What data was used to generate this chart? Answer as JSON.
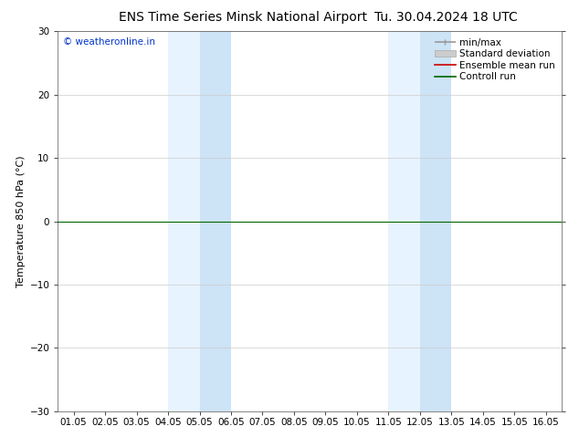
{
  "title_left": "ENS Time Series Minsk National Airport",
  "title_right": "Tu. 30.04.2024 18 UTC",
  "ylabel": "Temperature 850 hPa (°C)",
  "ylim": [
    -30,
    30
  ],
  "yticks": [
    -30,
    -20,
    -10,
    0,
    10,
    20,
    30
  ],
  "xlim": [
    0,
    15
  ],
  "xtick_labels": [
    "01.05",
    "02.05",
    "03.05",
    "04.05",
    "05.05",
    "06.05",
    "07.05",
    "08.05",
    "09.05",
    "10.05",
    "11.05",
    "12.05",
    "13.05",
    "14.05",
    "15.05",
    "16.05"
  ],
  "xtick_positions": [
    0,
    1,
    2,
    3,
    4,
    5,
    6,
    7,
    8,
    9,
    10,
    11,
    12,
    13,
    14,
    15
  ],
  "watermark": "© weatheronline.in",
  "watermark_color": "#0033cc",
  "background_color": "#ffffff",
  "plot_bg_color": "#ffffff",
  "shaded_regions": [
    {
      "x_start": 3.0,
      "x_end": 4.0,
      "color": "#ddeeff",
      "alpha": 0.7
    },
    {
      "x_start": 4.0,
      "x_end": 5.0,
      "color": "#c5dff5",
      "alpha": 0.85
    },
    {
      "x_start": 10.0,
      "x_end": 11.0,
      "color": "#ddeeff",
      "alpha": 0.7
    },
    {
      "x_start": 11.0,
      "x_end": 12.0,
      "color": "#c5dff5",
      "alpha": 0.85
    }
  ],
  "zero_line_y": 0,
  "control_run_color": "#006600",
  "ensemble_mean_color": "#cc0000",
  "legend_items": [
    {
      "label": "min/max",
      "color": "#999999"
    },
    {
      "label": "Standard deviation",
      "color": "#bbbbbb"
    },
    {
      "label": "Ensemble mean run",
      "color": "#cc0000"
    },
    {
      "label": "Controll run",
      "color": "#006600"
    }
  ],
  "title_fontsize": 10,
  "axis_fontsize": 8,
  "tick_fontsize": 7.5,
  "watermark_fontsize": 7.5,
  "legend_fontsize": 7.5
}
